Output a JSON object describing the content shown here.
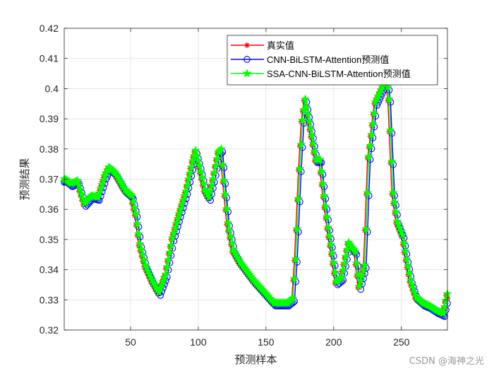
{
  "chart_data": {
    "type": "line",
    "xlabel": "预测样本",
    "ylabel": "预测结果",
    "xlim": [
      1,
      284
    ],
    "ylim": [
      0.32,
      0.42
    ],
    "xticks": [
      50,
      100,
      150,
      200,
      250
    ],
    "yticks": [
      0.32,
      0.33,
      0.34,
      0.35,
      0.36,
      0.37,
      0.38,
      0.39,
      0.4,
      0.41,
      0.42
    ],
    "grid": true,
    "legend_position": "top-right",
    "series_keypoints": [
      [
        1,
        0.3695
      ],
      [
        5,
        0.368
      ],
      [
        10,
        0.369
      ],
      [
        15,
        0.3615
      ],
      [
        20,
        0.364
      ],
      [
        25,
        0.3635
      ],
      [
        30,
        0.3705
      ],
      [
        33,
        0.3735
      ],
      [
        38,
        0.3715
      ],
      [
        45,
        0.366
      ],
      [
        50,
        0.364
      ],
      [
        53,
        0.358
      ],
      [
        56,
        0.348
      ],
      [
        60,
        0.341
      ],
      [
        65,
        0.336
      ],
      [
        70,
        0.332
      ],
      [
        75,
        0.338
      ],
      [
        80,
        0.35
      ],
      [
        85,
        0.358
      ],
      [
        90,
        0.3655
      ],
      [
        95,
        0.3755
      ],
      [
        97,
        0.379
      ],
      [
        100,
        0.374
      ],
      [
        104,
        0.366
      ],
      [
        107,
        0.3635
      ],
      [
        110,
        0.3695
      ],
      [
        114,
        0.3785
      ],
      [
        116,
        0.3795
      ],
      [
        118,
        0.369
      ],
      [
        121,
        0.355
      ],
      [
        125,
        0.346
      ],
      [
        130,
        0.342
      ],
      [
        135,
        0.339
      ],
      [
        140,
        0.336
      ],
      [
        145,
        0.3335
      ],
      [
        150,
        0.331
      ],
      [
        155,
        0.3285
      ],
      [
        160,
        0.3285
      ],
      [
        165,
        0.3285
      ],
      [
        169,
        0.33
      ],
      [
        171,
        0.343
      ],
      [
        174,
        0.373
      ],
      [
        176,
        0.389
      ],
      [
        178,
        0.396
      ],
      [
        180,
        0.391
      ],
      [
        183,
        0.384
      ],
      [
        186,
        0.376
      ],
      [
        189,
        0.376
      ],
      [
        192,
        0.364
      ],
      [
        195,
        0.3535
      ],
      [
        198,
        0.345
      ],
      [
        201,
        0.3355
      ],
      [
        205,
        0.337
      ],
      [
        210,
        0.3485
      ],
      [
        215,
        0.3455
      ],
      [
        218,
        0.334
      ],
      [
        222,
        0.341
      ],
      [
        225,
        0.377
      ],
      [
        230,
        0.395
      ],
      [
        235,
        0.4
      ],
      [
        238,
        0.404
      ],
      [
        240,
        0.396
      ],
      [
        243,
        0.365
      ],
      [
        246,
        0.3555
      ],
      [
        250,
        0.351
      ],
      [
        253,
        0.343
      ],
      [
        256,
        0.336
      ],
      [
        260,
        0.3305
      ],
      [
        265,
        0.3285
      ],
      [
        270,
        0.3275
      ],
      [
        275,
        0.326
      ],
      [
        280,
        0.325
      ],
      [
        283,
        0.3315
      ],
      [
        284,
        0.3305
      ]
    ],
    "series": [
      {
        "name": "真实值",
        "color": "#FF0000",
        "marker": "asterisk",
        "lag": 0,
        "offset": 0
      },
      {
        "name": "CNN-BiLSTM-Attention预测值",
        "color": "#0000FF",
        "marker": "circle",
        "lag": 2,
        "offset": -0.0005
      },
      {
        "name": "SSA-CNN-BiLSTM-Attention预测值",
        "color": "#00FF00",
        "marker": "star",
        "lag": 1,
        "offset": 0.0005
      }
    ]
  },
  "watermark": "CSDN @海神之光"
}
